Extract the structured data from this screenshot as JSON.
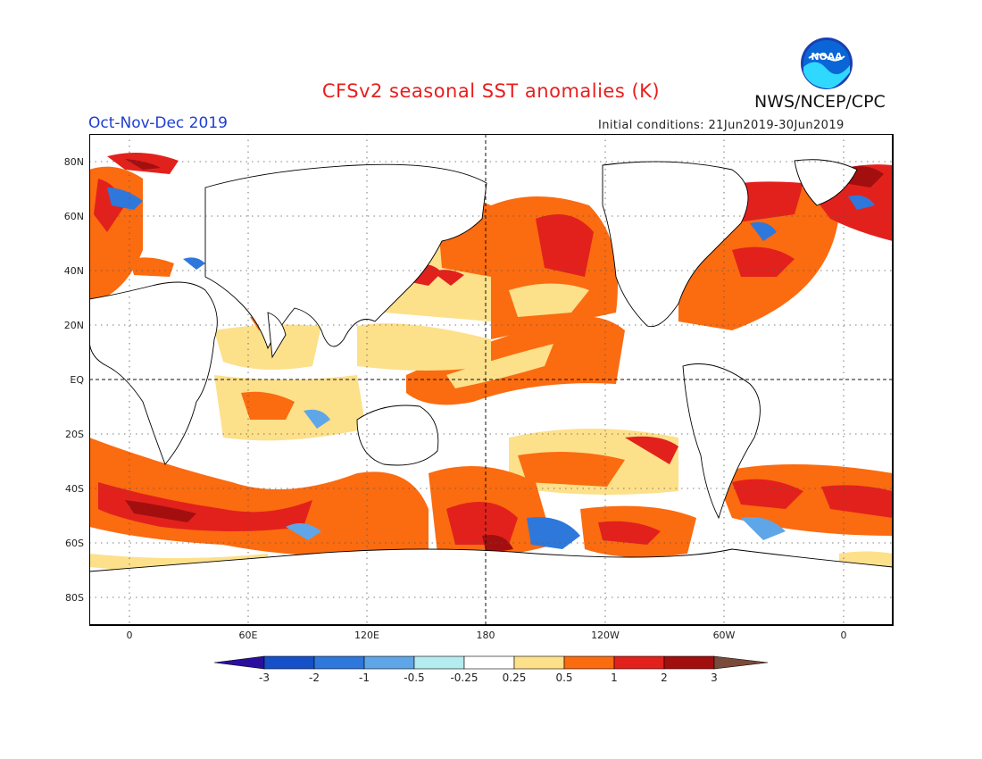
{
  "header": {
    "title": "CFSv2 seasonal SST anomalies (K)",
    "agency": "NWS/NCEP/CPC",
    "season": "Oct-Nov-Dec 2019",
    "initial_conditions": "Initial conditions: 21Jun2019-30Jun2019",
    "logo_text": "NOAA"
  },
  "map": {
    "lat_labels": [
      "80N",
      "60N",
      "40N",
      "20N",
      "EQ",
      "20S",
      "40S",
      "60S",
      "80S"
    ],
    "lon_labels": [
      "0",
      "60E",
      "120E",
      "180",
      "120W",
      "60W",
      "0"
    ],
    "grid": "dotted",
    "projection": "cylindrical, centered 180"
  },
  "colorbar": {
    "labels": [
      "-3",
      "-2",
      "-1",
      "-0.5",
      "-0.25",
      "0.25",
      "0.5",
      "1",
      "2",
      "3"
    ],
    "colors": [
      "#2a0f9e",
      "#1650c8",
      "#2e78dc",
      "#5fa6e8",
      "#b4ecf0",
      "#ffffff",
      "#fde08a",
      "#fb6b10",
      "#e2211c",
      "#a30f0f",
      "#7a4a3a"
    ]
  }
}
